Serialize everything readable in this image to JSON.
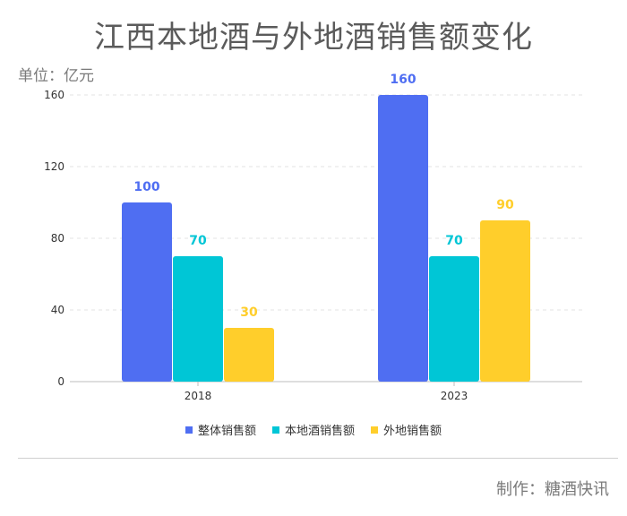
{
  "chart_data": {
    "type": "bar",
    "title": "江西本地酒与外地酒销售额变化",
    "unit_label": "单位：亿元",
    "categories": [
      "2018",
      "2023"
    ],
    "series": [
      {
        "name": "整体销售额",
        "values": [
          100,
          160
        ],
        "color": "#4f6ef2"
      },
      {
        "name": "本地酒销售额",
        "values": [
          70,
          70
        ],
        "color": "#00c6d6"
      },
      {
        "name": "外地销售额",
        "values": [
          30,
          90
        ],
        "color": "#ffce2b"
      }
    ],
    "ylim": [
      0,
      160
    ],
    "yticks": [
      "0",
      "40",
      "80",
      "120",
      "160"
    ],
    "grid": true,
    "legend_position": "bottom"
  },
  "footer": {
    "credit": "制作：糖酒快讯"
  }
}
